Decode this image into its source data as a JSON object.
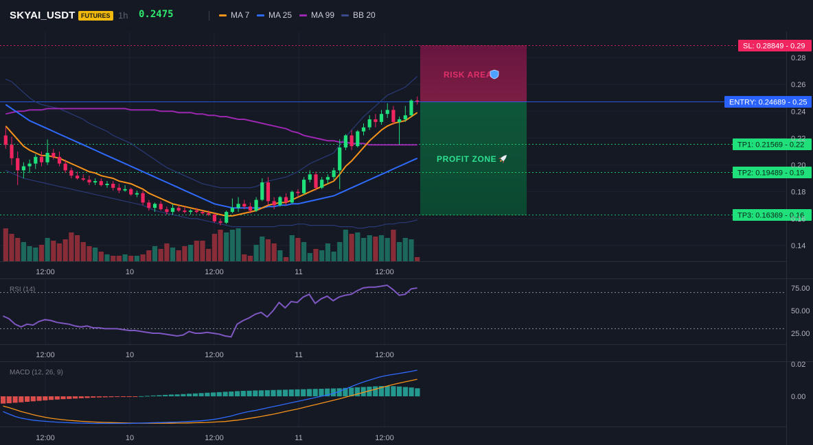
{
  "header": {
    "symbol": "SKYAI_USDT",
    "badge": "FUTURES",
    "timeframe": "1h",
    "price": "0.2475",
    "legend": [
      {
        "label": "MA 7",
        "color": "#f7931a"
      },
      {
        "label": "MA 25",
        "color": "#2f6bff"
      },
      {
        "label": "MA 99",
        "color": "#9c27b0"
      },
      {
        "label": "BB 20",
        "color": "#3a4a8a"
      }
    ]
  },
  "levels": {
    "sl": "SL: 0.28849 - 0.29",
    "entry": "ENTRY: 0.24689 - 0.25",
    "tp1": "TP1: 0.21569 - 0.22",
    "tp2": "TP2: 0.19489 - 0.19",
    "tp3": "TP3: 0.16369 - 0.16"
  },
  "zones": {
    "risk": "RISK AREA",
    "profit": "PROFIT ZONE"
  },
  "colors": {
    "up": "#26a69a",
    "down": "#ef5350",
    "candle_up": "#1fe07a",
    "candle_down": "#f0245f"
  },
  "chart_data": [
    {
      "type": "candlestick",
      "price_ticks": [
        "0.28",
        "0.26",
        "0.24",
        "0.22",
        "0.20",
        "0.18",
        "0.16",
        "0.14"
      ],
      "x_ticks": [
        "12:00",
        "10",
        "12:00",
        "11",
        "12:00"
      ],
      "ylim": [
        0.13,
        0.29
      ],
      "candles": [
        [
          0.222,
          0.228,
          0.212,
          0.215
        ],
        [
          0.215,
          0.221,
          0.2,
          0.205
        ],
        [
          0.205,
          0.21,
          0.185,
          0.196
        ],
        [
          0.196,
          0.202,
          0.19,
          0.199
        ],
        [
          0.199,
          0.204,
          0.194,
          0.201
        ],
        [
          0.201,
          0.208,
          0.197,
          0.206
        ],
        [
          0.206,
          0.21,
          0.199,
          0.202
        ],
        [
          0.202,
          0.219,
          0.2,
          0.209
        ],
        [
          0.209,
          0.212,
          0.204,
          0.206
        ],
        [
          0.206,
          0.21,
          0.199,
          0.201
        ],
        [
          0.201,
          0.204,
          0.194,
          0.196
        ],
        [
          0.196,
          0.198,
          0.19,
          0.192
        ],
        [
          0.192,
          0.195,
          0.189,
          0.19
        ],
        [
          0.19,
          0.193,
          0.188,
          0.189
        ],
        [
          0.189,
          0.192,
          0.185,
          0.187
        ],
        [
          0.187,
          0.19,
          0.185,
          0.188
        ],
        [
          0.188,
          0.19,
          0.184,
          0.185
        ],
        [
          0.185,
          0.188,
          0.183,
          0.186
        ],
        [
          0.186,
          0.188,
          0.181,
          0.183
        ],
        [
          0.183,
          0.186,
          0.179,
          0.181
        ],
        [
          0.181,
          0.185,
          0.18,
          0.182
        ],
        [
          0.182,
          0.183,
          0.177,
          0.178
        ],
        [
          0.178,
          0.181,
          0.176,
          0.179
        ],
        [
          0.179,
          0.181,
          0.17,
          0.172
        ],
        [
          0.172,
          0.174,
          0.166,
          0.168
        ],
        [
          0.168,
          0.172,
          0.165,
          0.171
        ],
        [
          0.171,
          0.173,
          0.166,
          0.167
        ],
        [
          0.167,
          0.169,
          0.163,
          0.165
        ],
        [
          0.165,
          0.171,
          0.163,
          0.168
        ],
        [
          0.168,
          0.17,
          0.165,
          0.166
        ],
        [
          0.166,
          0.169,
          0.164,
          0.165
        ],
        [
          0.165,
          0.167,
          0.163,
          0.166
        ],
        [
          0.166,
          0.168,
          0.164,
          0.165
        ],
        [
          0.165,
          0.166,
          0.163,
          0.164
        ],
        [
          0.164,
          0.166,
          0.162,
          0.163
        ],
        [
          0.163,
          0.164,
          0.157,
          0.158
        ],
        [
          0.158,
          0.16,
          0.155,
          0.157
        ],
        [
          0.157,
          0.166,
          0.156,
          0.165
        ],
        [
          0.165,
          0.175,
          0.164,
          0.168
        ],
        [
          0.168,
          0.176,
          0.165,
          0.171
        ],
        [
          0.171,
          0.174,
          0.167,
          0.169
        ],
        [
          0.169,
          0.172,
          0.164,
          0.166
        ],
        [
          0.166,
          0.176,
          0.165,
          0.174
        ],
        [
          0.174,
          0.19,
          0.173,
          0.187
        ],
        [
          0.187,
          0.191,
          0.17,
          0.173
        ],
        [
          0.173,
          0.176,
          0.167,
          0.17
        ],
        [
          0.17,
          0.177,
          0.169,
          0.176
        ],
        [
          0.176,
          0.179,
          0.17,
          0.172
        ],
        [
          0.172,
          0.181,
          0.171,
          0.18
        ],
        [
          0.18,
          0.182,
          0.176,
          0.179
        ],
        [
          0.179,
          0.191,
          0.178,
          0.189
        ],
        [
          0.189,
          0.196,
          0.187,
          0.193
        ],
        [
          0.193,
          0.195,
          0.181,
          0.183
        ],
        [
          0.183,
          0.191,
          0.182,
          0.189
        ],
        [
          0.189,
          0.193,
          0.186,
          0.191
        ],
        [
          0.191,
          0.198,
          0.189,
          0.196
        ],
        [
          0.196,
          0.219,
          0.182,
          0.213
        ],
        [
          0.213,
          0.223,
          0.211,
          0.222
        ],
        [
          0.222,
          0.226,
          0.211,
          0.214
        ],
        [
          0.214,
          0.226,
          0.213,
          0.225
        ],
        [
          0.225,
          0.231,
          0.222,
          0.228
        ],
        [
          0.228,
          0.237,
          0.226,
          0.234
        ],
        [
          0.234,
          0.238,
          0.228,
          0.232
        ],
        [
          0.232,
          0.241,
          0.23,
          0.238
        ],
        [
          0.238,
          0.246,
          0.235,
          0.241
        ],
        [
          0.241,
          0.244,
          0.23,
          0.232
        ],
        [
          0.232,
          0.236,
          0.215,
          0.234
        ],
        [
          0.234,
          0.244,
          0.232,
          0.237
        ],
        [
          0.237,
          0.249,
          0.236,
          0.248
        ],
        [
          0.248,
          0.251,
          0.245,
          0.2475
        ]
      ],
      "ma7": [
        0.229,
        0.224,
        0.219,
        0.214,
        0.211,
        0.209,
        0.207,
        0.207,
        0.206,
        0.205,
        0.203,
        0.201,
        0.199,
        0.197,
        0.195,
        0.194,
        0.192,
        0.191,
        0.19,
        0.188,
        0.187,
        0.186,
        0.184,
        0.182,
        0.179,
        0.177,
        0.175,
        0.173,
        0.171,
        0.17,
        0.169,
        0.168,
        0.167,
        0.166,
        0.165,
        0.164,
        0.163,
        0.162,
        0.162,
        0.163,
        0.164,
        0.165,
        0.166,
        0.168,
        0.17,
        0.171,
        0.172,
        0.172,
        0.174,
        0.176,
        0.178,
        0.18,
        0.182,
        0.184,
        0.186,
        0.188,
        0.193,
        0.199,
        0.203,
        0.208,
        0.213,
        0.218,
        0.222,
        0.226,
        0.229,
        0.231,
        0.232,
        0.233,
        0.236,
        0.239
      ],
      "ma25": [
        0.245,
        0.242,
        0.239,
        0.236,
        0.233,
        0.231,
        0.229,
        0.227,
        0.225,
        0.223,
        0.221,
        0.219,
        0.217,
        0.215,
        0.213,
        0.211,
        0.209,
        0.207,
        0.205,
        0.203,
        0.201,
        0.199,
        0.197,
        0.195,
        0.193,
        0.191,
        0.189,
        0.187,
        0.185,
        0.183,
        0.181,
        0.179,
        0.177,
        0.175,
        0.173,
        0.171,
        0.17,
        0.169,
        0.168,
        0.168,
        0.168,
        0.168,
        0.168,
        0.168,
        0.169,
        0.169,
        0.17,
        0.17,
        0.171,
        0.171,
        0.172,
        0.173,
        0.174,
        0.175,
        0.176,
        0.177,
        0.179,
        0.181,
        0.183,
        0.185,
        0.187,
        0.189,
        0.191,
        0.193,
        0.195,
        0.197,
        0.199,
        0.201,
        0.203,
        0.205
      ],
      "ma99": [
        0.238,
        0.239,
        0.24,
        0.24,
        0.241,
        0.241,
        0.241,
        0.242,
        0.242,
        0.242,
        0.242,
        0.242,
        0.242,
        0.242,
        0.242,
        0.242,
        0.242,
        0.242,
        0.242,
        0.242,
        0.242,
        0.241,
        0.241,
        0.241,
        0.241,
        0.241,
        0.24,
        0.24,
        0.24,
        0.239,
        0.239,
        0.239,
        0.238,
        0.238,
        0.237,
        0.237,
        0.236,
        0.236,
        0.235,
        0.234,
        0.234,
        0.233,
        0.232,
        0.231,
        0.23,
        0.229,
        0.228,
        0.227,
        0.225,
        0.224,
        0.222,
        0.221,
        0.22,
        0.219,
        0.218,
        0.218,
        0.217,
        0.217,
        0.216,
        0.216,
        0.216,
        0.215,
        0.215,
        0.215,
        0.215,
        0.215,
        0.215,
        0.215,
        0.215,
        0.215
      ],
      "bb_upper": [
        0.264,
        0.262,
        0.258,
        0.254,
        0.25,
        0.247,
        0.245,
        0.244,
        0.243,
        0.242,
        0.24,
        0.238,
        0.236,
        0.234,
        0.231,
        0.229,
        0.227,
        0.225,
        0.222,
        0.22,
        0.218,
        0.216,
        0.213,
        0.21,
        0.207,
        0.204,
        0.201,
        0.198,
        0.196,
        0.194,
        0.192,
        0.19,
        0.188,
        0.186,
        0.185,
        0.184,
        0.183,
        0.183,
        0.183,
        0.183,
        0.183,
        0.183,
        0.184,
        0.186,
        0.188,
        0.189,
        0.19,
        0.191,
        0.193,
        0.195,
        0.198,
        0.201,
        0.203,
        0.205,
        0.207,
        0.209,
        0.215,
        0.221,
        0.226,
        0.231,
        0.236,
        0.24,
        0.244,
        0.248,
        0.252,
        0.254,
        0.256,
        0.258,
        0.262,
        0.266
      ],
      "bb_lower": [
        0.196,
        0.194,
        0.192,
        0.19,
        0.189,
        0.188,
        0.187,
        0.186,
        0.185,
        0.184,
        0.183,
        0.182,
        0.181,
        0.18,
        0.179,
        0.178,
        0.177,
        0.176,
        0.175,
        0.174,
        0.173,
        0.172,
        0.171,
        0.17,
        0.168,
        0.166,
        0.165,
        0.164,
        0.163,
        0.162,
        0.161,
        0.16,
        0.16,
        0.159,
        0.158,
        0.157,
        0.156,
        0.155,
        0.154,
        0.154,
        0.154,
        0.154,
        0.154,
        0.154,
        0.154,
        0.154,
        0.155,
        0.155,
        0.155,
        0.156,
        0.156,
        0.155,
        0.155,
        0.155,
        0.155,
        0.155,
        0.154,
        0.154,
        0.154,
        0.153,
        0.153,
        0.154,
        0.154,
        0.155,
        0.156,
        0.156,
        0.157,
        0.157,
        0.158,
        0.159
      ],
      "volume": [
        48,
        40,
        34,
        28,
        22,
        20,
        24,
        34,
        30,
        26,
        32,
        42,
        38,
        28,
        22,
        20,
        14,
        10,
        8,
        8,
        10,
        8,
        8,
        10,
        16,
        22,
        18,
        26,
        20,
        16,
        22,
        24,
        30,
        30,
        18,
        40,
        46,
        42,
        46,
        48,
        10,
        8,
        24,
        36,
        32,
        26,
        16,
        6,
        38,
        34,
        28,
        12,
        18,
        16,
        26,
        14,
        28,
        46,
        40,
        42,
        34,
        38,
        36,
        38,
        34,
        46,
        28,
        34,
        32,
        6
      ]
    },
    {
      "type": "line",
      "title": "RSI (14)",
      "y_ticks": [
        "75.00",
        "50.00",
        "25.00"
      ],
      "ylim": [
        0,
        100
      ],
      "levels": [
        70,
        30
      ],
      "x_ticks": [
        "12:00",
        "10",
        "12:00",
        "11",
        "12:00"
      ],
      "values": [
        44,
        41,
        35,
        32,
        35,
        34,
        38,
        40,
        39,
        37,
        36,
        35,
        33,
        32,
        33,
        31,
        31,
        30,
        30,
        30,
        29,
        28,
        28,
        27,
        26,
        25,
        25,
        24,
        23,
        22,
        23,
        27,
        25,
        25,
        26,
        25,
        24,
        22,
        21,
        35,
        39,
        42,
        46,
        48,
        43,
        50,
        59,
        53,
        60,
        59,
        65,
        68,
        58,
        63,
        66,
        61,
        65,
        67,
        68,
        72,
        75,
        76,
        76,
        77,
        78,
        73,
        67,
        68,
        74,
        75
      ]
    },
    {
      "type": "bar",
      "title": "MACD (12, 26, 9)",
      "y_ticks": [
        "0.02",
        "0.00"
      ],
      "ylim": [
        -0.024,
        0.022
      ],
      "x_ticks": [
        "12:00",
        "10",
        "12:00",
        "11",
        "12:00"
      ],
      "histogram": [
        -0.0045,
        -0.0043,
        -0.004,
        -0.0037,
        -0.0034,
        -0.0031,
        -0.0028,
        -0.0025,
        -0.0022,
        -0.002,
        -0.0018,
        -0.0016,
        -0.0014,
        -0.0012,
        -0.001,
        -0.0008,
        -0.0007,
        -0.0006,
        -0.0005,
        -0.0004,
        -0.0003,
        -0.0002,
        -0.0001,
        0.0001,
        0.0003,
        0.0005,
        0.0007,
        0.0009,
        0.0011,
        0.0012,
        0.0014,
        0.0016,
        0.0018,
        0.002,
        0.0022,
        0.0024,
        0.0026,
        0.0028,
        0.003,
        0.0032,
        0.0034,
        0.0035,
        0.0036,
        0.0037,
        0.0038,
        0.0039,
        0.004,
        0.0041,
        0.0042,
        0.0043,
        0.0044,
        0.0045,
        0.0046,
        0.0047,
        0.0048,
        0.0049,
        0.005,
        0.0052,
        0.0054,
        0.0056,
        0.0058,
        0.006,
        0.0062,
        0.0064,
        0.0064,
        0.0063,
        0.0061,
        0.0058,
        0.0055,
        0.005
      ],
      "macd": [
        -0.0095,
        -0.011,
        -0.0125,
        -0.0135,
        -0.0142,
        -0.0148,
        -0.0152,
        -0.0155,
        -0.0158,
        -0.016,
        -0.0162,
        -0.0164,
        -0.0165,
        -0.0166,
        -0.0167,
        -0.0168,
        -0.0168,
        -0.0168,
        -0.0168,
        -0.0168,
        -0.0168,
        -0.0168,
        -0.0167,
        -0.0166,
        -0.0165,
        -0.0164,
        -0.0163,
        -0.0162,
        -0.0161,
        -0.016,
        -0.0158,
        -0.0156,
        -0.0154,
        -0.0152,
        -0.0148,
        -0.0144,
        -0.0138,
        -0.013,
        -0.0122,
        -0.0112,
        -0.0102,
        -0.0094,
        -0.0088,
        -0.008,
        -0.0072,
        -0.0064,
        -0.0056,
        -0.0048,
        -0.004,
        -0.0032,
        -0.0024,
        -0.0016,
        -0.0008,
        0.0,
        0.0008,
        0.0018,
        0.003,
        0.0045,
        0.006,
        0.0075,
        0.0088,
        0.01,
        0.0112,
        0.0122,
        0.013,
        0.0136,
        0.0142,
        0.0148,
        0.0155,
        0.0162
      ],
      "signal": [
        -0.006,
        -0.007,
        -0.0082,
        -0.0094,
        -0.0104,
        -0.0114,
        -0.0122,
        -0.013,
        -0.0136,
        -0.0141,
        -0.0145,
        -0.0149,
        -0.0152,
        -0.0155,
        -0.0157,
        -0.0159,
        -0.0161,
        -0.0162,
        -0.0163,
        -0.0164,
        -0.0165,
        -0.0166,
        -0.0166,
        -0.0167,
        -0.0167,
        -0.0167,
        -0.0167,
        -0.0167,
        -0.0167,
        -0.0166,
        -0.0166,
        -0.0165,
        -0.0164,
        -0.0163,
        -0.0162,
        -0.016,
        -0.0158,
        -0.0156,
        -0.0152,
        -0.0148,
        -0.0143,
        -0.0137,
        -0.0131,
        -0.0125,
        -0.0118,
        -0.0111,
        -0.0103,
        -0.0095,
        -0.0087,
        -0.0079,
        -0.007,
        -0.0061,
        -0.0052,
        -0.0043,
        -0.0034,
        -0.0025,
        -0.0016,
        -0.0006,
        0.0004,
        0.0014,
        0.0024,
        0.0034,
        0.0044,
        0.0054,
        0.0064,
        0.0073,
        0.0082,
        0.009,
        0.0098,
        0.0106
      ]
    }
  ]
}
